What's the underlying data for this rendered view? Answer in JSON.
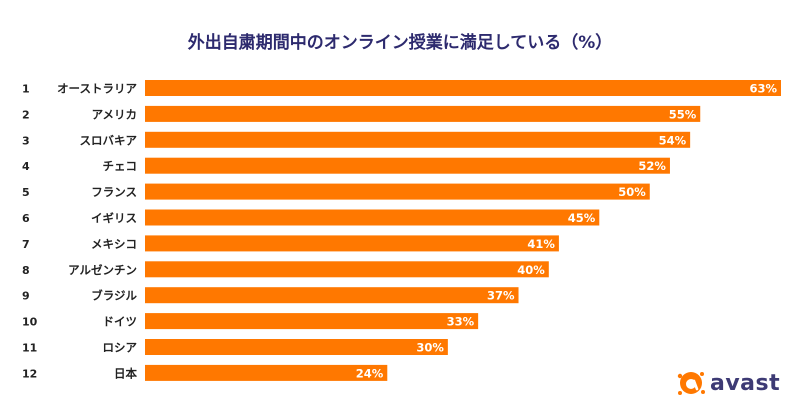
{
  "brand": {
    "name": "avast",
    "accent": "#ff7800",
    "title_color": "#2d2a6e"
  },
  "chart_data": {
    "type": "bar",
    "orientation": "horizontal",
    "title": "外出自粛期間中のオンライン授業に満足している（%）",
    "ranks": [
      "1",
      "2",
      "3",
      "4",
      "5",
      "6",
      "7",
      "8",
      "9",
      "10",
      "11",
      "12"
    ],
    "categories": [
      "オーストラリア",
      "アメリカ",
      "スロバキア",
      "チェコ",
      "フランス",
      "イギリス",
      "メキシコ",
      "アルゼンチン",
      "ブラジル",
      "ドイツ",
      "ロシア",
      "日本"
    ],
    "values": [
      63,
      55,
      54,
      52,
      50,
      45,
      41,
      40,
      37,
      33,
      30,
      24
    ],
    "value_labels": [
      "63%",
      "55%",
      "54%",
      "52%",
      "50%",
      "45%",
      "41%",
      "40%",
      "37%",
      "33%",
      "30%",
      "24%"
    ],
    "unit": "%",
    "xlim": [
      0,
      63
    ]
  }
}
